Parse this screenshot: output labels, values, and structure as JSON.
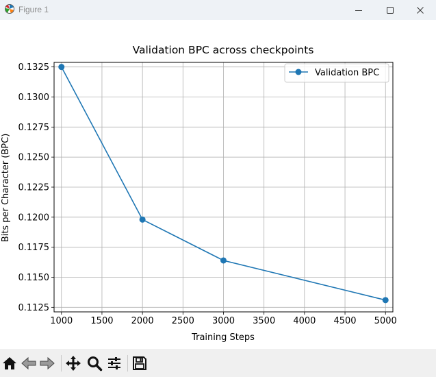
{
  "window": {
    "title": "Figure 1",
    "icons": {
      "app": "matplotlib-icon",
      "minimize": "minimize-icon",
      "maximize": "maximize-icon",
      "close": "close-icon"
    }
  },
  "toolbar": {
    "tools": [
      {
        "name": "home-icon"
      },
      {
        "name": "back-arrow-icon"
      },
      {
        "name": "forward-arrow-icon"
      },
      {
        "name": "pan-icon"
      },
      {
        "name": "zoom-icon"
      },
      {
        "name": "configure-subplots-icon"
      },
      {
        "name": "save-icon"
      }
    ]
  },
  "chart_data": {
    "type": "line",
    "title": "Validation BPC across checkpoints",
    "xlabel": "Training Steps",
    "ylabel": "Bits per Character (BPC)",
    "xlim": [
      909,
      5091
    ],
    "ylim": [
      0.11212,
      0.13288
    ],
    "xticks": [
      1000,
      1500,
      2000,
      2500,
      3000,
      3500,
      4000,
      4500,
      5000
    ],
    "yticks": [
      0.1125,
      0.115,
      0.1175,
      0.12,
      0.1225,
      0.125,
      0.1275,
      0.13,
      0.1325
    ],
    "xtick_labels": [
      "1000",
      "1500",
      "2000",
      "2500",
      "3000",
      "3500",
      "4000",
      "4500",
      "5000"
    ],
    "ytick_labels": [
      "0.1125",
      "0.1150",
      "0.1175",
      "0.1200",
      "0.1225",
      "0.1250",
      "0.1275",
      "0.1300",
      "0.1325"
    ],
    "grid": true,
    "legend_position": "upper right",
    "series": [
      {
        "name": "Validation BPC",
        "color": "#1f77b4",
        "marker": "circle",
        "x": [
          1000,
          2000,
          3000,
          5000
        ],
        "y": [
          0.1325,
          0.1198,
          0.1164,
          0.1131
        ]
      }
    ]
  }
}
